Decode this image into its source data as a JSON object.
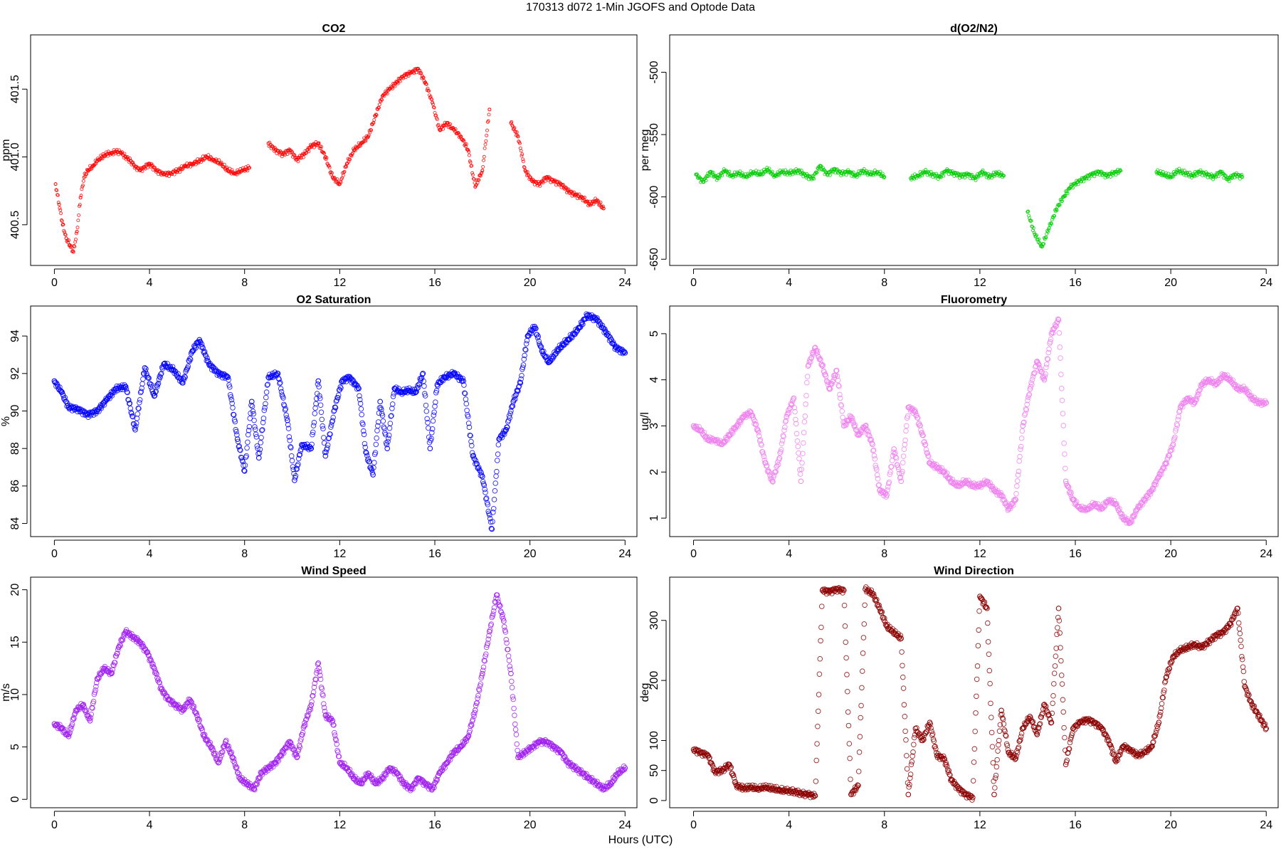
{
  "figure_title": "170313   d072   1-Min  JGOFS and Optode Data",
  "x_label": "Hours (UTC)",
  "chart_data": [
    {
      "type": "scatter",
      "title": "CO2",
      "ylabel": "ppm",
      "color": "#ff0000",
      "marker_size": "small",
      "xlim": [
        -1,
        24.5
      ],
      "ylim": [
        400.2,
        401.9
      ],
      "xticks": [
        0,
        4,
        8,
        12,
        16,
        20,
        24
      ],
      "yticks": [
        400.5,
        401.0,
        401.5
      ],
      "ytick_labels": [
        "400.5",
        "401.0",
        "401.5"
      ],
      "x": [
        0.05,
        0.2,
        0.35,
        0.5,
        0.65,
        0.8,
        0.95,
        1.1,
        1.25,
        1.4,
        1.6,
        1.8,
        2.0,
        2.2,
        2.4,
        2.6,
        2.8,
        3.0,
        3.2,
        3.4,
        3.6,
        4.0,
        4.3,
        4.6,
        4.9,
        5.2,
        5.5,
        5.8,
        6.1,
        6.4,
        6.7,
        7.0,
        7.3,
        7.6,
        7.9,
        8.2,
        9.0,
        9.3,
        9.6,
        9.9,
        10.2,
        10.5,
        10.8,
        11.1,
        11.4,
        11.7,
        12.0,
        12.3,
        12.6,
        12.9,
        13.2,
        13.5,
        13.8,
        14.1,
        14.4,
        14.7,
        15.0,
        15.3,
        15.6,
        15.9,
        16.2,
        16.5,
        16.8,
        17.1,
        17.4,
        17.7,
        18.0,
        18.3,
        19.2,
        19.5,
        19.8,
        20.1,
        20.4,
        20.7,
        21.0,
        21.3,
        21.6,
        21.9,
        22.2,
        22.5,
        22.8,
        23.1
      ],
      "y": [
        400.8,
        400.65,
        400.5,
        400.4,
        400.35,
        400.3,
        400.45,
        400.7,
        400.85,
        400.9,
        400.93,
        400.97,
        401.0,
        401.02,
        401.03,
        401.04,
        401.03,
        401.0,
        400.97,
        400.93,
        400.9,
        400.95,
        400.9,
        400.87,
        400.88,
        400.9,
        400.93,
        400.95,
        400.97,
        401.0,
        400.98,
        400.95,
        400.9,
        400.88,
        400.9,
        400.92,
        401.1,
        401.05,
        401.02,
        401.05,
        400.98,
        401.02,
        401.08,
        401.1,
        401.0,
        400.85,
        400.8,
        400.95,
        401.05,
        401.1,
        401.15,
        401.3,
        401.45,
        401.5,
        401.55,
        401.6,
        401.62,
        401.65,
        401.55,
        401.4,
        401.2,
        401.25,
        401.2,
        401.15,
        401.05,
        400.78,
        400.9,
        401.35,
        401.25,
        401.15,
        400.9,
        400.82,
        400.8,
        400.85,
        400.82,
        400.8,
        400.75,
        400.72,
        400.7,
        400.65,
        400.68,
        400.62
      ]
    },
    {
      "type": "scatter",
      "title": "d(O2/N2)",
      "ylabel": "per meg",
      "color": "#00cc00",
      "marker_size": "small",
      "xlim": [
        -1,
        24.5
      ],
      "ylim": [
        -655,
        -470
      ],
      "xticks": [
        0,
        4,
        8,
        12,
        16,
        20,
        24
      ],
      "yticks": [
        -650,
        -600,
        -550,
        -500
      ],
      "ytick_labels": [
        "-650",
        "-600",
        "-550",
        "-500"
      ],
      "x": [
        0.1,
        0.4,
        0.7,
        1.0,
        1.3,
        1.6,
        1.9,
        2.2,
        2.5,
        2.8,
        3.1,
        3.4,
        3.7,
        4.0,
        4.4,
        4.7,
        5.0,
        5.3,
        5.6,
        5.9,
        6.2,
        6.5,
        6.8,
        7.1,
        7.4,
        7.7,
        8.0,
        9.1,
        9.4,
        9.7,
        10.0,
        10.3,
        10.6,
        10.9,
        11.2,
        11.5,
        11.8,
        12.1,
        12.4,
        12.7,
        13.0,
        14.0,
        14.3,
        14.6,
        14.9,
        15.2,
        15.5,
        15.8,
        16.1,
        16.4,
        16.7,
        17.0,
        17.3,
        17.6,
        17.9,
        19.4,
        19.7,
        20.0,
        20.3,
        20.6,
        20.9,
        21.2,
        21.5,
        21.8,
        22.1,
        22.4,
        22.7,
        23.0
      ],
      "y": [
        -582,
        -588,
        -580,
        -585,
        -579,
        -583,
        -581,
        -584,
        -580,
        -582,
        -578,
        -583,
        -580,
        -581,
        -579,
        -583,
        -585,
        -575,
        -582,
        -578,
        -581,
        -580,
        -583,
        -579,
        -582,
        -580,
        -584,
        -585,
        -583,
        -580,
        -582,
        -584,
        -579,
        -581,
        -583,
        -582,
        -585,
        -580,
        -584,
        -581,
        -583,
        -612,
        -630,
        -640,
        -625,
        -610,
        -600,
        -592,
        -588,
        -585,
        -582,
        -580,
        -583,
        -581,
        -579,
        -580,
        -582,
        -584,
        -579,
        -581,
        -583,
        -580,
        -582,
        -584,
        -580,
        -586,
        -582,
        -584
      ]
    },
    {
      "type": "scatter",
      "title": "O2 Saturation",
      "ylabel": "%",
      "color": "#0000ff",
      "marker_size": "medium",
      "xlim": [
        -1,
        24.5
      ],
      "ylim": [
        83.3,
        95.6
      ],
      "xticks": [
        0,
        4,
        8,
        12,
        16,
        20,
        24
      ],
      "yticks": [
        84,
        86,
        88,
        90,
        92,
        94
      ],
      "ytick_labels": [
        "84",
        "86",
        "88",
        "90",
        "92",
        "94"
      ],
      "x": [
        0.0,
        0.3,
        0.6,
        1.0,
        1.4,
        1.8,
        2.2,
        2.6,
        3.0,
        3.4,
        3.8,
        4.2,
        4.6,
        5.0,
        5.4,
        5.8,
        6.1,
        6.5,
        6.9,
        7.3,
        7.7,
        8.0,
        8.3,
        8.6,
        9.0,
        9.4,
        9.8,
        10.1,
        10.4,
        10.8,
        11.1,
        11.4,
        11.8,
        12.1,
        12.4,
        12.8,
        13.1,
        13.4,
        13.7,
        14.0,
        14.3,
        14.6,
        14.9,
        15.2,
        15.5,
        15.8,
        16.1,
        16.4,
        16.8,
        17.2,
        17.6,
        18.0,
        18.4,
        18.7,
        19.0,
        19.3,
        19.6,
        19.9,
        20.2,
        20.5,
        20.8,
        21.2,
        21.6,
        22.0,
        22.4,
        22.8,
        23.2,
        23.6,
        24.0
      ],
      "y": [
        91.6,
        91.0,
        90.2,
        90.1,
        89.8,
        90.0,
        90.6,
        91.2,
        91.3,
        89.0,
        92.3,
        90.8,
        92.5,
        92.2,
        91.5,
        93.2,
        93.8,
        92.5,
        92.0,
        91.8,
        88.5,
        86.8,
        90.5,
        87.5,
        91.8,
        92.0,
        89.5,
        86.3,
        88.2,
        88.0,
        91.6,
        87.6,
        90.2,
        91.6,
        91.8,
        91.2,
        87.8,
        86.6,
        90.5,
        88.0,
        91.2,
        91.0,
        91.1,
        91.0,
        92.0,
        88.0,
        91.4,
        91.8,
        92.0,
        91.6,
        87.6,
        86.5,
        83.7,
        88.5,
        89.0,
        90.5,
        91.5,
        94.0,
        94.5,
        93.2,
        92.6,
        93.3,
        93.8,
        94.3,
        95.1,
        94.9,
        94.2,
        93.4,
        93.1
      ]
    },
    {
      "type": "scatter",
      "title": "Fluorometry",
      "ylabel": "ug/l",
      "color": "#ee82ee",
      "marker_size": "medium",
      "xlim": [
        -1,
        24.5
      ],
      "ylim": [
        0.6,
        5.6
      ],
      "xticks": [
        0,
        4,
        8,
        12,
        16,
        20,
        24
      ],
      "yticks": [
        1,
        2,
        3,
        4,
        5
      ],
      "ytick_labels": [
        "1",
        "2",
        "3",
        "4",
        "5"
      ],
      "x": [
        0.0,
        0.3,
        0.6,
        0.9,
        1.2,
        1.5,
        1.8,
        2.1,
        2.4,
        2.7,
        3.0,
        3.3,
        3.6,
        3.9,
        4.2,
        4.5,
        4.8,
        5.1,
        5.4,
        5.7,
        6.0,
        6.3,
        6.6,
        6.9,
        7.2,
        7.5,
        7.8,
        8.1,
        8.4,
        8.7,
        9.0,
        9.3,
        9.6,
        9.9,
        10.2,
        10.5,
        10.8,
        11.1,
        11.4,
        11.7,
        12.0,
        12.3,
        12.6,
        12.9,
        13.2,
        13.5,
        13.8,
        14.1,
        14.4,
        14.7,
        15.0,
        15.3,
        15.6,
        15.9,
        16.2,
        16.5,
        16.8,
        17.1,
        17.4,
        17.7,
        18.0,
        18.3,
        18.6,
        18.9,
        19.2,
        19.5,
        19.8,
        20.1,
        20.4,
        20.7,
        21.0,
        21.3,
        21.6,
        21.9,
        22.2,
        22.5,
        22.8,
        23.1,
        23.4,
        23.7,
        24.0
      ],
      "y": [
        3.0,
        2.9,
        2.7,
        2.7,
        2.6,
        2.8,
        3.0,
        3.2,
        3.3,
        2.9,
        2.2,
        1.8,
        2.3,
        3.2,
        3.6,
        1.8,
        4.3,
        4.7,
        4.3,
        3.8,
        4.2,
        3.0,
        3.2,
        2.8,
        3.0,
        2.6,
        1.6,
        1.5,
        2.5,
        1.8,
        3.4,
        3.3,
        2.8,
        2.2,
        2.1,
        2.0,
        1.8,
        1.7,
        1.8,
        1.7,
        1.7,
        1.8,
        1.6,
        1.5,
        1.2,
        1.4,
        3.0,
        3.8,
        4.4,
        4.0,
        5.0,
        5.3,
        1.8,
        1.4,
        1.2,
        1.2,
        1.3,
        1.2,
        1.4,
        1.3,
        1.0,
        0.9,
        1.2,
        1.4,
        1.6,
        1.9,
        2.2,
        2.6,
        3.4,
        3.6,
        3.5,
        3.9,
        4.0,
        3.9,
        4.1,
        4.0,
        3.8,
        3.8,
        3.6,
        3.5,
        3.5
      ]
    },
    {
      "type": "scatter",
      "title": "Wind Speed",
      "ylabel": "m/s",
      "color": "#a020f0",
      "marker_size": "medium",
      "xlim": [
        -1,
        24.5
      ],
      "ylim": [
        -0.8,
        21.2
      ],
      "xticks": [
        0,
        4,
        8,
        12,
        16,
        20,
        24
      ],
      "yticks": [
        0,
        5,
        10,
        15,
        20
      ],
      "ytick_labels": [
        "0",
        "5",
        "10",
        "15",
        "20"
      ],
      "x": [
        0.0,
        0.3,
        0.6,
        0.9,
        1.2,
        1.5,
        1.8,
        2.1,
        2.4,
        2.7,
        3.0,
        3.3,
        3.6,
        3.9,
        4.2,
        4.5,
        4.8,
        5.1,
        5.4,
        5.7,
        6.0,
        6.3,
        6.6,
        6.9,
        7.2,
        7.5,
        7.8,
        8.1,
        8.4,
        8.7,
        9.0,
        9.3,
        9.6,
        9.9,
        10.2,
        10.5,
        10.8,
        11.1,
        11.4,
        11.7,
        12.0,
        12.3,
        12.6,
        12.9,
        13.2,
        13.5,
        13.8,
        14.1,
        14.4,
        14.7,
        15.0,
        15.3,
        15.6,
        15.9,
        16.2,
        16.5,
        16.8,
        17.1,
        17.4,
        17.7,
        18.0,
        18.3,
        18.6,
        18.9,
        19.2,
        19.5,
        19.8,
        20.1,
        20.4,
        20.7,
        21.0,
        21.3,
        21.6,
        21.9,
        22.2,
        22.5,
        22.8,
        23.1,
        23.4,
        23.7,
        24.0
      ],
      "y": [
        7.2,
        6.8,
        6.0,
        8.5,
        9.0,
        7.5,
        11.5,
        12.5,
        12.0,
        14.5,
        16.0,
        15.5,
        15.0,
        14.0,
        12.5,
        10.5,
        9.5,
        9.0,
        8.5,
        9.5,
        8.0,
        6.0,
        5.0,
        3.5,
        5.5,
        4.0,
        2.0,
        1.5,
        1.0,
        2.5,
        3.0,
        3.5,
        4.5,
        5.5,
        4.0,
        7.0,
        9.0,
        13.0,
        8.0,
        7.5,
        3.5,
        3.0,
        2.0,
        1.5,
        2.5,
        1.5,
        2.0,
        3.0,
        2.5,
        1.5,
        1.0,
        2.0,
        1.5,
        1.0,
        2.5,
        3.5,
        4.5,
        5.0,
        6.0,
        8.5,
        12.0,
        16.0,
        19.5,
        17.0,
        12.0,
        4.0,
        4.5,
        5.0,
        5.5,
        5.5,
        5.0,
        4.5,
        3.5,
        3.0,
        2.5,
        2.0,
        1.5,
        1.0,
        1.5,
        2.5,
        3.0
      ]
    },
    {
      "type": "scatter",
      "title": "Wind Direction",
      "ylabel": "deg",
      "color": "#8b0000",
      "marker_size": "medium",
      "xlim": [
        -1,
        24.5
      ],
      "ylim": [
        -12,
        372
      ],
      "xticks": [
        0,
        4,
        8,
        12,
        16,
        20,
        24
      ],
      "yticks": [
        0,
        50,
        100,
        200,
        300
      ],
      "ytick_labels": [
        "0",
        "50",
        "100",
        "200",
        "300"
      ],
      "x": [
        0.0,
        0.3,
        0.6,
        0.9,
        1.2,
        1.5,
        1.8,
        2.1,
        2.4,
        2.7,
        3.0,
        3.3,
        3.6,
        3.9,
        4.2,
        4.5,
        4.8,
        5.1,
        5.4,
        5.7,
        6.0,
        6.3,
        6.6,
        6.9,
        7.2,
        7.5,
        7.8,
        8.1,
        8.4,
        8.7,
        9.0,
        9.3,
        9.6,
        9.9,
        10.2,
        10.5,
        10.8,
        11.1,
        11.4,
        11.7,
        12.0,
        12.3,
        12.6,
        12.9,
        13.2,
        13.5,
        13.8,
        14.1,
        14.4,
        14.7,
        15.0,
        15.3,
        15.6,
        15.9,
        16.2,
        16.5,
        16.8,
        17.1,
        17.4,
        17.7,
        18.0,
        18.3,
        18.6,
        18.9,
        19.2,
        19.5,
        19.8,
        20.1,
        20.4,
        20.7,
        21.0,
        21.3,
        21.6,
        21.9,
        22.2,
        22.5,
        22.8,
        23.1,
        23.4,
        23.7,
        24.0
      ],
      "y": [
        85,
        80,
        75,
        48,
        50,
        60,
        25,
        20,
        22,
        20,
        22,
        20,
        18,
        16,
        15,
        12,
        10,
        8,
        350,
        348,
        352,
        350,
        10,
        25,
        352,
        345,
        320,
        290,
        280,
        270,
        10,
        120,
        100,
        130,
        75,
        70,
        35,
        20,
        10,
        5,
        340,
        320,
        10,
        150,
        80,
        70,
        120,
        140,
        110,
        160,
        130,
        320,
        60,
        120,
        130,
        135,
        130,
        120,
        100,
        65,
        90,
        85,
        75,
        80,
        90,
        130,
        205,
        240,
        250,
        255,
        260,
        255,
        265,
        275,
        280,
        295,
        320,
        190,
        160,
        140,
        120
      ]
    }
  ]
}
